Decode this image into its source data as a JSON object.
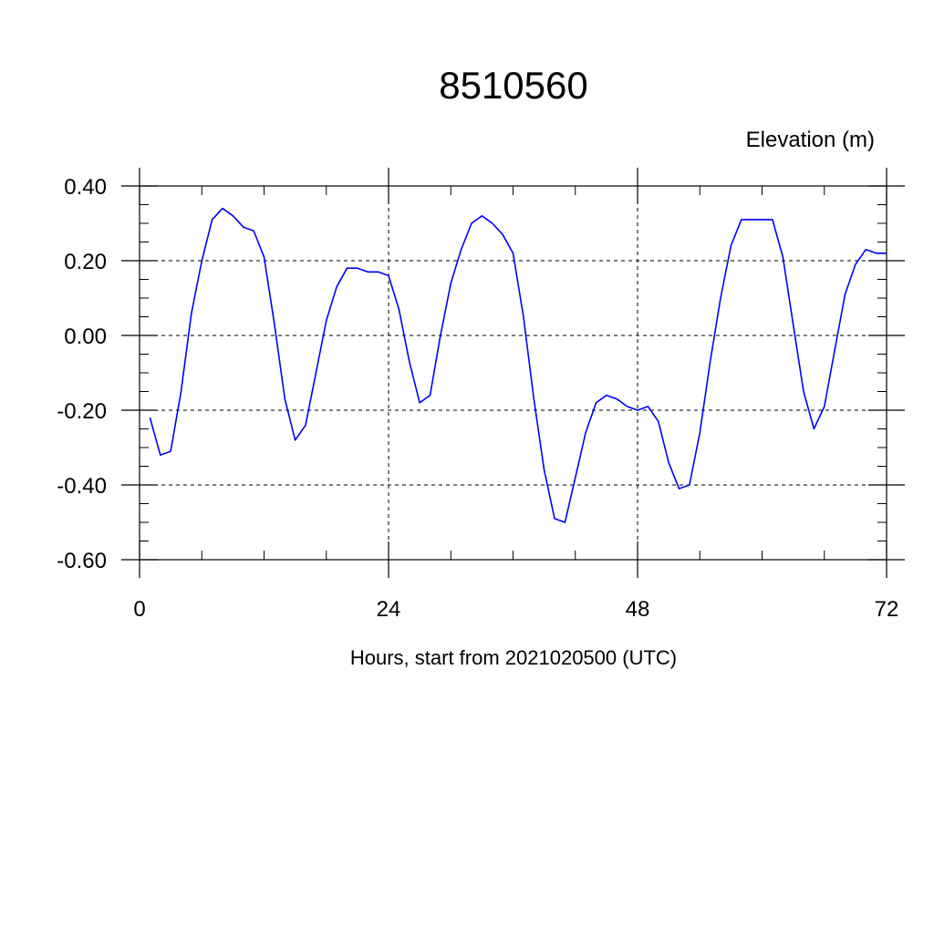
{
  "chart_data": {
    "type": "line",
    "title": "8510560",
    "ylabel": "Elevation (m)",
    "xlabel": "Hours, start from 2021020500 (UTC)",
    "xlim": [
      0,
      72
    ],
    "ylim": [
      -0.6,
      0.4
    ],
    "x_ticks": [
      0,
      24,
      48,
      72
    ],
    "x_tick_labels": [
      "0",
      "24",
      "48",
      "72"
    ],
    "y_ticks": [
      0.4,
      0.2,
      0.0,
      -0.2,
      -0.4,
      -0.6
    ],
    "y_tick_labels": [
      "0.40",
      "0.20",
      "0.00",
      "-0.20",
      "-0.40",
      "-0.60"
    ],
    "grid": true,
    "series": [
      {
        "color": "#0000ff",
        "x": [
          1,
          2,
          3,
          4,
          5,
          6,
          7,
          8,
          9,
          10,
          11,
          12,
          13,
          14,
          15,
          16,
          17,
          18,
          19,
          20,
          21,
          22,
          23,
          24,
          25,
          26,
          27,
          28,
          29,
          30,
          31,
          32,
          33,
          34,
          35,
          36,
          37,
          38,
          39,
          40,
          41,
          42,
          43,
          44,
          45,
          46,
          47,
          48,
          49,
          50,
          51,
          52,
          53,
          54,
          55,
          56,
          57,
          58,
          59,
          60,
          61,
          62,
          63,
          64,
          65,
          66,
          67,
          68,
          69,
          70,
          71,
          72
        ],
        "y": [
          -0.22,
          -0.32,
          -0.31,
          -0.15,
          0.06,
          0.2,
          0.31,
          0.34,
          0.32,
          0.29,
          0.28,
          0.21,
          0.03,
          -0.17,
          -0.28,
          -0.24,
          -0.1,
          0.04,
          0.13,
          0.18,
          0.18,
          0.17,
          0.17,
          0.16,
          0.07,
          -0.07,
          -0.18,
          -0.16,
          0.0,
          0.14,
          0.23,
          0.3,
          0.32,
          0.3,
          0.27,
          0.22,
          0.05,
          -0.17,
          -0.36,
          -0.49,
          -0.5,
          -0.38,
          -0.26,
          -0.18,
          -0.16,
          -0.17,
          -0.19,
          -0.2,
          -0.19,
          -0.23,
          -0.34,
          -0.41,
          -0.4,
          -0.26,
          -0.07,
          0.1,
          0.24,
          0.31,
          0.31,
          0.31,
          0.31,
          0.21,
          0.03,
          -0.15,
          -0.25,
          -0.19,
          -0.04,
          0.11,
          0.19,
          0.23,
          0.22,
          0.22
        ]
      }
    ]
  }
}
